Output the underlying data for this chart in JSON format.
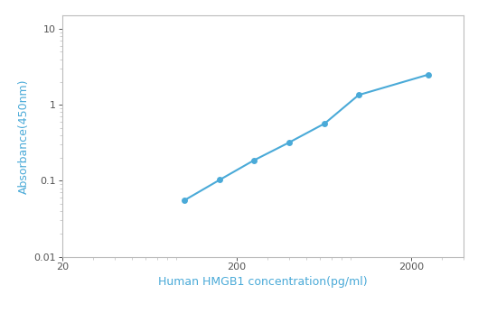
{
  "x": [
    100,
    160,
    250,
    400,
    640,
    1000,
    2500
  ],
  "y": [
    0.055,
    0.103,
    0.185,
    0.32,
    0.57,
    1.35,
    2.5
  ],
  "line_color": "#4AAAD8",
  "marker_color": "#4AAAD8",
  "marker_size": 5,
  "line_width": 1.5,
  "xlabel": "Human HMGB1 concentration(pg/ml)",
  "ylabel": "Absorbance(450nm)",
  "xlim": [
    20,
    4000
  ],
  "ylim": [
    0.01,
    15
  ],
  "x_ticks": [
    20,
    200,
    2000
  ],
  "y_ticks": [
    0.01,
    0.1,
    1,
    10
  ],
  "label_fontsize": 9,
  "tick_fontsize": 8,
  "background_color": "#ffffff"
}
